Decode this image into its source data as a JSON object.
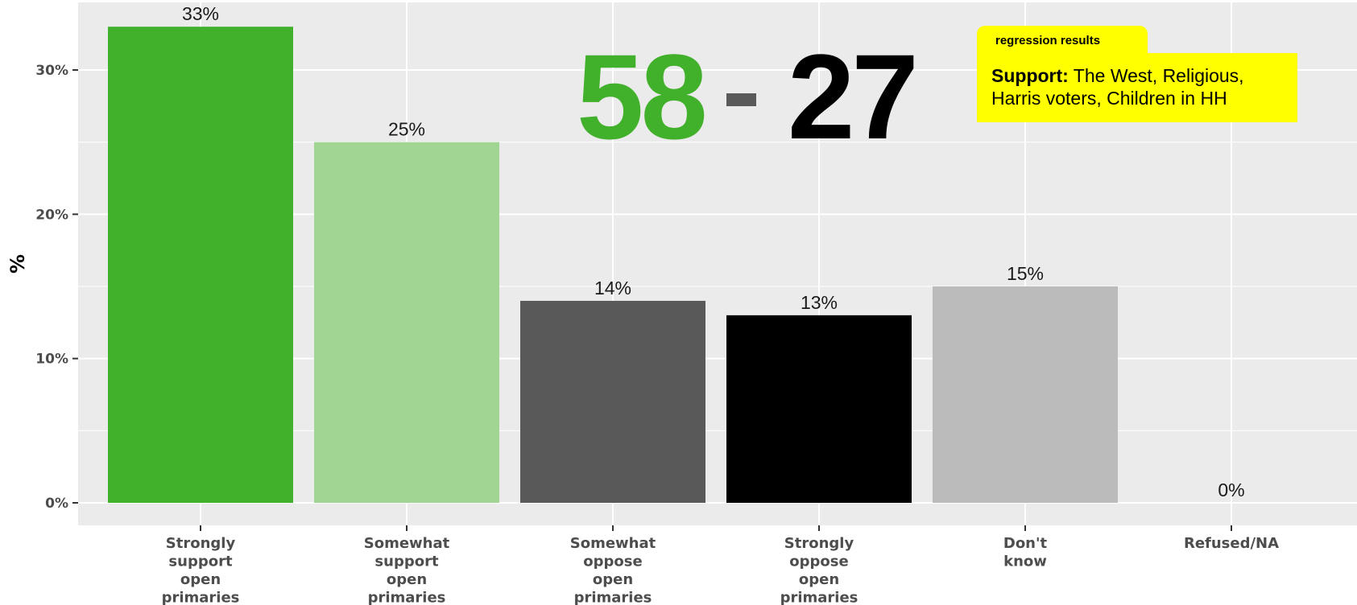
{
  "chart_data": {
    "type": "bar",
    "categories": [
      [
        "Strongly",
        "support",
        "open",
        "primaries"
      ],
      [
        "Somewhat",
        "support",
        "open",
        "primaries"
      ],
      [
        "Somewhat",
        "oppose",
        "open",
        "primaries"
      ],
      [
        "Strongly",
        "oppose",
        "open",
        "primaries"
      ],
      [
        "Don't",
        "know"
      ],
      [
        "Refused/NA"
      ]
    ],
    "values": [
      33,
      25,
      14,
      13,
      15,
      0
    ],
    "data_labels": [
      "33%",
      "25%",
      "14%",
      "13%",
      "15%",
      "0%"
    ],
    "colors": [
      "#41b02a",
      "#a0d594",
      "#595959",
      "#000000",
      "#bbbbbb",
      "#ffffff"
    ],
    "ylabel": "%",
    "xlabel": "",
    "ylim": [
      0,
      34.5
    ],
    "yticks": [
      0,
      10,
      20,
      30
    ],
    "ytick_labels": [
      "0%",
      "10%",
      "20%",
      "30%"
    ],
    "grid": true,
    "background": "#ebebeb",
    "gridline_color": "#ffffff"
  },
  "headline": {
    "support_total": "58",
    "oppose_total": "27",
    "support_color": "#41b02a",
    "oppose_color": "#000000"
  },
  "regression": {
    "tab_label": "regression results",
    "lead": "Support:",
    "text": "The West, Religious, Harris voters, Children in HH",
    "box_color": "#ffff00"
  }
}
